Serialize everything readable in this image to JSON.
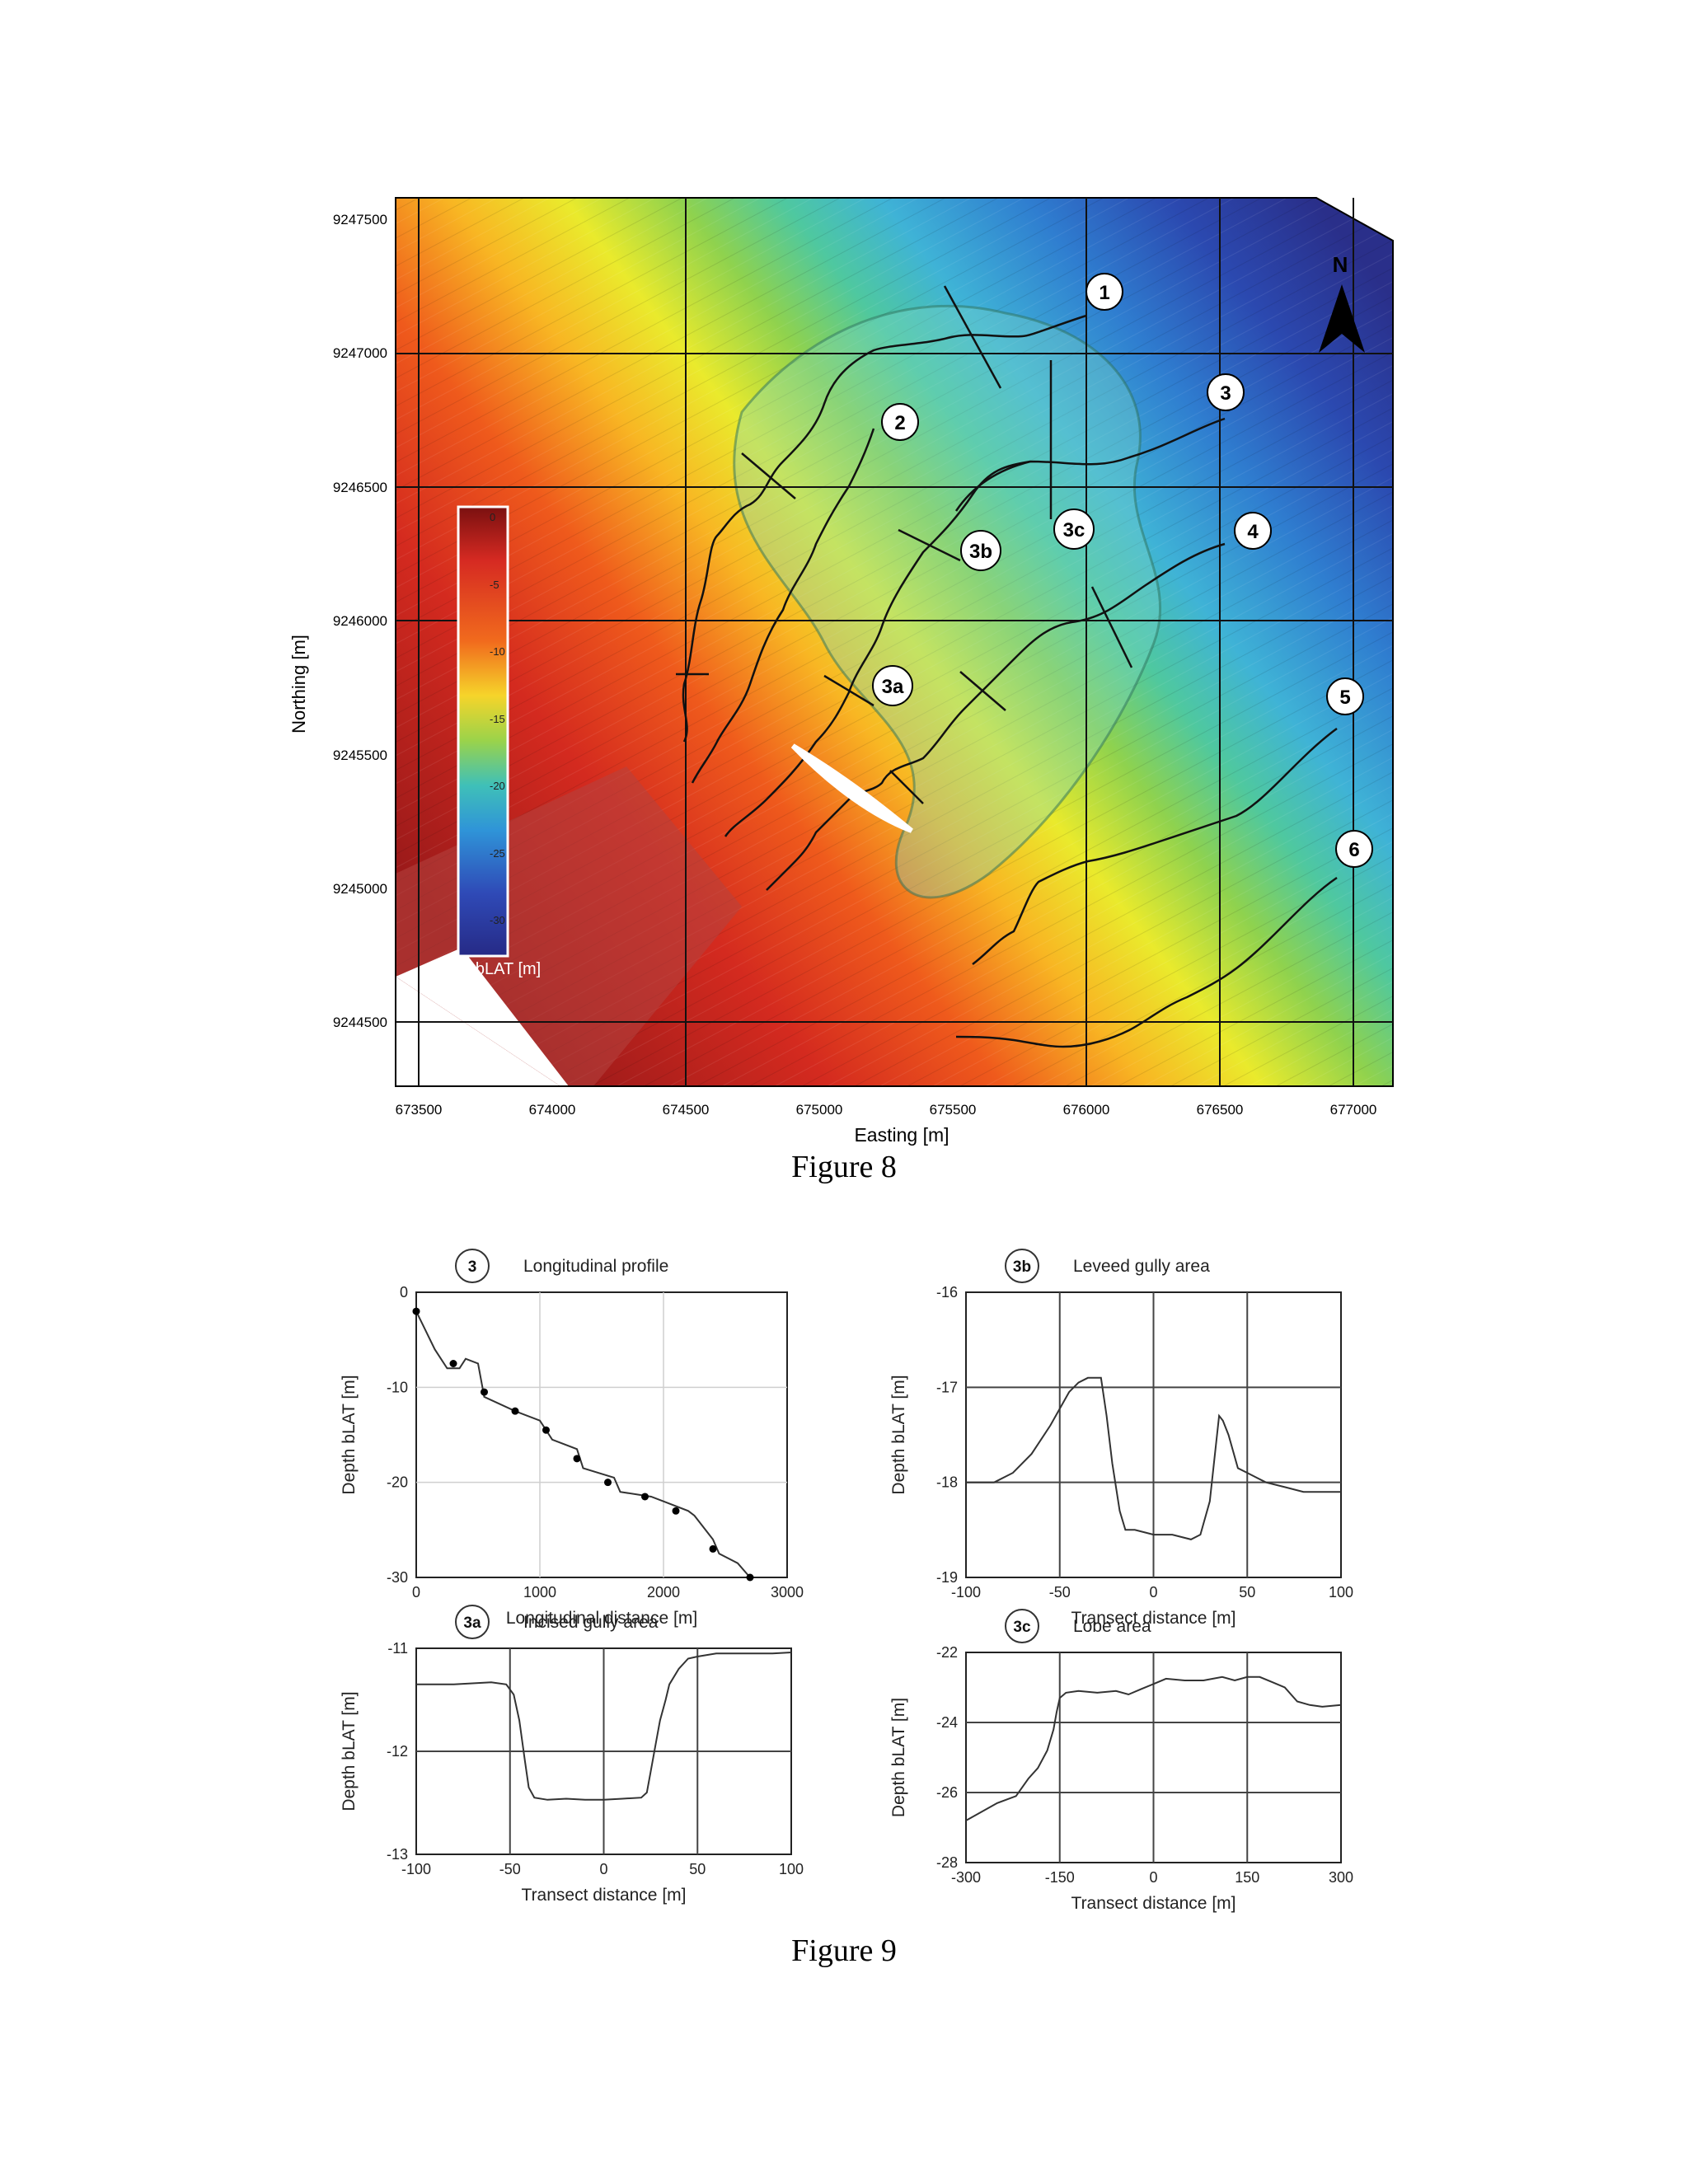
{
  "figure8": {
    "caption": "Figure 8",
    "x_axis": {
      "label": "Easting [m]",
      "ticks": [
        "673500",
        "674000",
        "674500",
        "675000",
        "675500",
        "676000",
        "676500",
        "677000"
      ]
    },
    "y_axis": {
      "label": "Northing [m]",
      "ticks": [
        "9247500",
        "9247000",
        "9246500",
        "9246000",
        "9245500",
        "9245000",
        "9244500"
      ]
    },
    "colorbar": {
      "label": "Depth bLAT [m]",
      "ticks": [
        "0",
        "-5",
        "-10",
        "-15",
        "-20",
        "-25",
        "-30"
      ]
    },
    "north_label": "N",
    "profile_labels": [
      "1",
      "2",
      "3",
      "3a",
      "3b",
      "3c",
      "4",
      "5",
      "6"
    ]
  },
  "figure9": {
    "caption": "Figure 9",
    "panels": [
      {
        "id": "3",
        "title": "Longitudinal profile",
        "xlabel": "Longitudinal distance [m]",
        "ylabel": "Depth bLAT [m]",
        "xticks": [
          "0",
          "1000",
          "2000",
          "3000"
        ],
        "yticks": [
          "0",
          "-10",
          "-20",
          "-30"
        ]
      },
      {
        "id": "3b",
        "title": "Leveed gully area",
        "xlabel": "Transect distance [m]",
        "ylabel": "Depth bLAT [m]",
        "xticks": [
          "-100",
          "-50",
          "0",
          "50",
          "100"
        ],
        "yticks": [
          "-16",
          "-17",
          "-18",
          "-19"
        ]
      },
      {
        "id": "3a",
        "title": "Incised gully area",
        "xlabel": "Transect distance [m]",
        "ylabel": "Depth bLAT [m]",
        "xticks": [
          "-100",
          "-50",
          "0",
          "50",
          "100"
        ],
        "yticks": [
          "-11",
          "-12",
          "-13"
        ]
      },
      {
        "id": "3c",
        "title": "Lobe area",
        "xlabel": "Transect distance [m]",
        "ylabel": "Depth bLAT [m]",
        "xticks": [
          "-300",
          "-150",
          "0",
          "150",
          "300"
        ],
        "yticks": [
          "-22",
          "-24",
          "-26",
          "-28"
        ]
      }
    ]
  },
  "chart_data": [
    {
      "type": "line",
      "title": "Longitudinal profile",
      "xlabel": "Longitudinal distance [m]",
      "ylabel": "Depth bLAT [m]",
      "xlim": [
        0,
        3000
      ],
      "ylim": [
        -30,
        0
      ],
      "grid": true,
      "x": [
        0,
        150,
        250,
        350,
        400,
        500,
        550,
        800,
        1000,
        1050,
        1100,
        1300,
        1350,
        1600,
        1650,
        1900,
        2000,
        2200,
        2250,
        2400,
        2450,
        2600,
        2700
      ],
      "y": [
        -2,
        -6,
        -8,
        -8,
        -7,
        -7.5,
        -11,
        -12.5,
        -13.5,
        -14.5,
        -15.5,
        -16.5,
        -18.5,
        -19.5,
        -21,
        -21.5,
        -22,
        -23,
        -23.5,
        -26,
        -27.5,
        -28.5,
        -30
      ],
      "markers_x": [
        0,
        300,
        550,
        800,
        1050,
        1300,
        1550,
        1850,
        2100,
        2400,
        2700
      ],
      "markers_y": [
        -2,
        -7.5,
        -10.5,
        -12.5,
        -14.5,
        -17.5,
        -20,
        -21.5,
        -23,
        -27,
        -30
      ]
    },
    {
      "type": "line",
      "title": "Leveed gully area",
      "xlabel": "Transect distance [m]",
      "ylabel": "Depth bLAT [m]",
      "xlim": [
        -100,
        100
      ],
      "ylim": [
        -19,
        -16
      ],
      "grid": true,
      "x": [
        -100,
        -85,
        -75,
        -65,
        -55,
        -45,
        -40,
        -35,
        -28,
        -25,
        -22,
        -18,
        -15,
        -10,
        0,
        10,
        20,
        25,
        30,
        35,
        37,
        40,
        45,
        50,
        60,
        70,
        80,
        90,
        100
      ],
      "y": [
        -18,
        -18,
        -17.9,
        -17.7,
        -17.4,
        -17.05,
        -16.95,
        -16.9,
        -16.9,
        -17.3,
        -17.8,
        -18.3,
        -18.5,
        -18.5,
        -18.55,
        -18.55,
        -18.6,
        -18.55,
        -18.2,
        -17.3,
        -17.35,
        -17.5,
        -17.85,
        -17.9,
        -18,
        -18.05,
        -18.1,
        -18.1,
        -18.1
      ]
    },
    {
      "type": "line",
      "title": "Incised gully area",
      "xlabel": "Transect distance [m]",
      "ylabel": "Depth bLAT [m]",
      "xlim": [
        -100,
        100
      ],
      "ylim": [
        -13,
        -11
      ],
      "grid": true,
      "x": [
        -100,
        -80,
        -60,
        -52,
        -48,
        -45,
        -42,
        -40,
        -37,
        -30,
        -20,
        -10,
        0,
        10,
        20,
        23,
        25,
        28,
        30,
        33,
        35,
        40,
        45,
        50,
        60,
        70,
        80,
        90,
        100
      ],
      "y": [
        -11.35,
        -11.35,
        -11.33,
        -11.35,
        -11.45,
        -11.7,
        -12.1,
        -12.35,
        -12.45,
        -12.47,
        -12.46,
        -12.47,
        -12.47,
        -12.46,
        -12.45,
        -12.4,
        -12.2,
        -11.9,
        -11.7,
        -11.5,
        -11.35,
        -11.2,
        -11.1,
        -11.08,
        -11.05,
        -11.05,
        -11.05,
        -11.05,
        -11.04
      ]
    },
    {
      "type": "line",
      "title": "Lobe area",
      "xlabel": "Transect distance [m]",
      "ylabel": "Depth bLAT [m]",
      "xlim": [
        -300,
        300
      ],
      "ylim": [
        -28,
        -22
      ],
      "grid": true,
      "x": [
        -300,
        -280,
        -250,
        -220,
        -200,
        -185,
        -170,
        -160,
        -155,
        -150,
        -140,
        -120,
        -90,
        -60,
        -40,
        -20,
        0,
        20,
        50,
        80,
        110,
        130,
        150,
        170,
        190,
        210,
        230,
        250,
        270,
        300
      ],
      "y": [
        -26.8,
        -26.6,
        -26.3,
        -26.1,
        -25.6,
        -25.3,
        -24.8,
        -24.2,
        -23.7,
        -23.3,
        -23.15,
        -23.1,
        -23.15,
        -23.1,
        -23.2,
        -23.05,
        -22.9,
        -22.75,
        -22.8,
        -22.8,
        -22.7,
        -22.8,
        -22.7,
        -22.7,
        -22.85,
        -23,
        -23.4,
        -23.5,
        -23.55,
        -23.5
      ]
    }
  ]
}
